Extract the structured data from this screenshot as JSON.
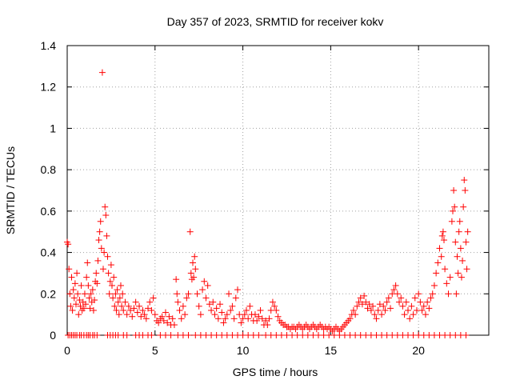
{
  "chart_data": {
    "type": "scatter",
    "title": "Day 357 of 2023, SRMTID for receiver kokv",
    "xlabel": "GPS time / hours",
    "ylabel": "SRMTID / TECUs",
    "xlim": [
      0,
      24
    ],
    "ylim": [
      0,
      1.4
    ],
    "xticks": [
      0,
      5,
      10,
      15,
      20
    ],
    "yticks": [
      0,
      0.2,
      0.4,
      0.6,
      0.8,
      1,
      1.2,
      1.4
    ],
    "xtick_labels": [
      "0",
      "5",
      "10",
      "15",
      "20"
    ],
    "ytick_labels": [
      "0",
      "0.2",
      "0.4",
      "0.6",
      "0.8",
      "1",
      "1.2",
      "1.4"
    ],
    "grid": true,
    "marker": "+",
    "color": "#ff0000",
    "series": [
      {
        "name": "SRMTID",
        "points": [
          [
            0.0,
            0.45
          ],
          [
            0.05,
            0.44
          ],
          [
            0.1,
            0.32
          ],
          [
            0.15,
            0.2
          ],
          [
            0.2,
            0.14
          ],
          [
            0.25,
            0.28
          ],
          [
            0.3,
            0.12
          ],
          [
            0.35,
            0.22
          ],
          [
            0.4,
            0.18
          ],
          [
            0.45,
            0.25
          ],
          [
            0.5,
            0.15
          ],
          [
            0.55,
            0.3
          ],
          [
            0.6,
            0.2
          ],
          [
            0.65,
            0.1
          ],
          [
            0.7,
            0.17
          ],
          [
            0.75,
            0.14
          ],
          [
            0.8,
            0.24
          ],
          [
            0.85,
            0.12
          ],
          [
            0.9,
            0.16
          ],
          [
            0.95,
            0.13
          ],
          [
            1.0,
            0.2
          ],
          [
            1.05,
            0.15
          ],
          [
            1.1,
            0.28
          ],
          [
            1.15,
            0.35
          ],
          [
            1.2,
            0.24
          ],
          [
            1.25,
            0.18
          ],
          [
            1.3,
            0.13
          ],
          [
            1.35,
            0.2
          ],
          [
            1.4,
            0.16
          ],
          [
            1.45,
            0.22
          ],
          [
            1.5,
            0.12
          ],
          [
            1.55,
            0.17
          ],
          [
            1.6,
            0.26
          ],
          [
            1.65,
            0.3
          ],
          [
            1.7,
            0.25
          ],
          [
            1.75,
            0.36
          ],
          [
            1.8,
            0.46
          ],
          [
            1.85,
            0.5
          ],
          [
            1.9,
            0.55
          ],
          [
            1.95,
            0.42
          ],
          [
            2.0,
            1.27
          ],
          [
            2.05,
            0.32
          ],
          [
            2.1,
            0.4
          ],
          [
            2.15,
            0.62
          ],
          [
            2.2,
            0.58
          ],
          [
            2.25,
            0.48
          ],
          [
            2.3,
            0.38
          ],
          [
            2.35,
            0.3
          ],
          [
            2.4,
            0.2
          ],
          [
            2.45,
            0.26
          ],
          [
            2.5,
            0.34
          ],
          [
            2.55,
            0.24
          ],
          [
            2.6,
            0.18
          ],
          [
            2.65,
            0.28
          ],
          [
            2.7,
            0.14
          ],
          [
            2.75,
            0.2
          ],
          [
            2.8,
            0.12
          ],
          [
            2.85,
            0.22
          ],
          [
            2.9,
            0.16
          ],
          [
            2.95,
            0.1
          ],
          [
            3.0,
            0.18
          ],
          [
            3.05,
            0.24
          ],
          [
            3.1,
            0.14
          ],
          [
            3.15,
            0.2
          ],
          [
            3.2,
            0.12
          ],
          [
            3.3,
            0.16
          ],
          [
            3.4,
            0.1
          ],
          [
            3.5,
            0.14
          ],
          [
            3.6,
            0.12
          ],
          [
            3.7,
            0.09
          ],
          [
            3.8,
            0.13
          ],
          [
            3.9,
            0.16
          ],
          [
            4.0,
            0.11
          ],
          [
            4.1,
            0.14
          ],
          [
            4.2,
            0.09
          ],
          [
            4.3,
            0.12
          ],
          [
            4.4,
            0.1
          ],
          [
            4.5,
            0.08
          ],
          [
            4.6,
            0.13
          ],
          [
            4.7,
            0.16
          ],
          [
            4.8,
            0.12
          ],
          [
            4.9,
            0.18
          ],
          [
            5.0,
            0.1
          ],
          [
            5.1,
            0.07
          ],
          [
            5.2,
            0.06
          ],
          [
            5.3,
            0.08
          ],
          [
            5.4,
            0.09
          ],
          [
            5.5,
            0.07
          ],
          [
            5.6,
            0.11
          ],
          [
            5.7,
            0.06
          ],
          [
            5.8,
            0.09
          ],
          [
            5.9,
            0.05
          ],
          [
            6.0,
            0.08
          ],
          [
            6.1,
            0.05
          ],
          [
            6.2,
            0.27
          ],
          [
            6.25,
            0.2
          ],
          [
            6.3,
            0.16
          ],
          [
            6.4,
            0.12
          ],
          [
            6.5,
            0.08
          ],
          [
            6.6,
            0.14
          ],
          [
            6.7,
            0.1
          ],
          [
            6.8,
            0.18
          ],
          [
            6.9,
            0.2
          ],
          [
            7.0,
            0.5
          ],
          [
            7.05,
            0.3
          ],
          [
            7.1,
            0.27
          ],
          [
            7.15,
            0.35
          ],
          [
            7.2,
            0.28
          ],
          [
            7.25,
            0.38
          ],
          [
            7.3,
            0.32
          ],
          [
            7.4,
            0.2
          ],
          [
            7.5,
            0.14
          ],
          [
            7.6,
            0.1
          ],
          [
            7.7,
            0.22
          ],
          [
            7.8,
            0.26
          ],
          [
            7.9,
            0.18
          ],
          [
            8.0,
            0.24
          ],
          [
            8.1,
            0.15
          ],
          [
            8.2,
            0.12
          ],
          [
            8.3,
            0.16
          ],
          [
            8.4,
            0.1
          ],
          [
            8.5,
            0.13
          ],
          [
            8.6,
            0.08
          ],
          [
            8.7,
            0.15
          ],
          [
            8.8,
            0.11
          ],
          [
            8.9,
            0.06
          ],
          [
            9.0,
            0.08
          ],
          [
            9.1,
            0.1
          ],
          [
            9.2,
            0.2
          ],
          [
            9.3,
            0.12
          ],
          [
            9.4,
            0.14
          ],
          [
            9.5,
            0.08
          ],
          [
            9.6,
            0.18
          ],
          [
            9.7,
            0.22
          ],
          [
            9.8,
            0.1
          ],
          [
            9.9,
            0.06
          ],
          [
            10.0,
            0.08
          ],
          [
            10.1,
            0.1
          ],
          [
            10.2,
            0.12
          ],
          [
            10.3,
            0.08
          ],
          [
            10.4,
            0.14
          ],
          [
            10.5,
            0.1
          ],
          [
            10.6,
            0.07
          ],
          [
            10.7,
            0.1
          ],
          [
            10.8,
            0.07
          ],
          [
            10.9,
            0.09
          ],
          [
            11.0,
            0.12
          ],
          [
            11.1,
            0.08
          ],
          [
            11.2,
            0.05
          ],
          [
            11.3,
            0.07
          ],
          [
            11.4,
            0.05
          ],
          [
            11.5,
            0.08
          ],
          [
            11.6,
            0.12
          ],
          [
            11.7,
            0.16
          ],
          [
            11.8,
            0.14
          ],
          [
            11.9,
            0.12
          ],
          [
            12.0,
            0.09
          ],
          [
            12.1,
            0.07
          ],
          [
            12.2,
            0.06
          ],
          [
            12.3,
            0.05
          ],
          [
            12.4,
            0.05
          ],
          [
            12.5,
            0.04
          ],
          [
            12.6,
            0.04
          ],
          [
            12.7,
            0.03
          ],
          [
            12.8,
            0.04
          ],
          [
            12.9,
            0.04
          ],
          [
            13.0,
            0.03
          ],
          [
            13.1,
            0.04
          ],
          [
            13.2,
            0.05
          ],
          [
            13.3,
            0.04
          ],
          [
            13.4,
            0.03
          ],
          [
            13.5,
            0.04
          ],
          [
            13.6,
            0.05
          ],
          [
            13.7,
            0.04
          ],
          [
            13.8,
            0.03
          ],
          [
            13.9,
            0.04
          ],
          [
            14.0,
            0.05
          ],
          [
            14.1,
            0.04
          ],
          [
            14.2,
            0.03
          ],
          [
            14.3,
            0.04
          ],
          [
            14.4,
            0.05
          ],
          [
            14.5,
            0.04
          ],
          [
            14.6,
            0.03
          ],
          [
            14.7,
            0.04
          ],
          [
            14.8,
            0.03
          ],
          [
            14.9,
            0.04
          ],
          [
            15.0,
            0.03
          ],
          [
            15.1,
            0.02
          ],
          [
            15.2,
            0.03
          ],
          [
            15.3,
            0.04
          ],
          [
            15.4,
            0.03
          ],
          [
            15.5,
            0.02
          ],
          [
            15.6,
            0.03
          ],
          [
            15.7,
            0.04
          ],
          [
            15.8,
            0.05
          ],
          [
            15.9,
            0.06
          ],
          [
            16.0,
            0.07
          ],
          [
            16.1,
            0.08
          ],
          [
            16.2,
            0.1
          ],
          [
            16.3,
            0.12
          ],
          [
            16.4,
            0.1
          ],
          [
            16.5,
            0.14
          ],
          [
            16.6,
            0.16
          ],
          [
            16.7,
            0.18
          ],
          [
            16.8,
            0.15
          ],
          [
            16.9,
            0.19
          ],
          [
            17.0,
            0.16
          ],
          [
            17.1,
            0.13
          ],
          [
            17.2,
            0.15
          ],
          [
            17.3,
            0.12
          ],
          [
            17.4,
            0.14
          ],
          [
            17.5,
            0.1
          ],
          [
            17.6,
            0.08
          ],
          [
            17.7,
            0.12
          ],
          [
            17.8,
            0.15
          ],
          [
            17.9,
            0.1
          ],
          [
            18.0,
            0.14
          ],
          [
            18.1,
            0.12
          ],
          [
            18.2,
            0.16
          ],
          [
            18.3,
            0.18
          ],
          [
            18.4,
            0.13
          ],
          [
            18.5,
            0.2
          ],
          [
            18.6,
            0.22
          ],
          [
            18.7,
            0.24
          ],
          [
            18.8,
            0.2
          ],
          [
            18.9,
            0.16
          ],
          [
            19.0,
            0.18
          ],
          [
            19.1,
            0.14
          ],
          [
            19.2,
            0.1
          ],
          [
            19.3,
            0.16
          ],
          [
            19.4,
            0.12
          ],
          [
            19.5,
            0.08
          ],
          [
            19.6,
            0.14
          ],
          [
            19.7,
            0.1
          ],
          [
            19.8,
            0.18
          ],
          [
            19.9,
            0.12
          ],
          [
            20.0,
            0.2
          ],
          [
            20.1,
            0.16
          ],
          [
            20.2,
            0.12
          ],
          [
            20.3,
            0.14
          ],
          [
            20.4,
            0.1
          ],
          [
            20.5,
            0.16
          ],
          [
            20.6,
            0.13
          ],
          [
            20.7,
            0.18
          ],
          [
            20.8,
            0.2
          ],
          [
            20.9,
            0.24
          ],
          [
            21.0,
            0.3
          ],
          [
            21.1,
            0.35
          ],
          [
            21.2,
            0.42
          ],
          [
            21.3,
            0.38
          ],
          [
            21.35,
            0.48
          ],
          [
            21.4,
            0.5
          ],
          [
            21.45,
            0.46
          ],
          [
            21.5,
            0.32
          ],
          [
            21.6,
            0.25
          ],
          [
            21.7,
            0.2
          ],
          [
            21.8,
            0.28
          ],
          [
            21.9,
            0.55
          ],
          [
            21.95,
            0.6
          ],
          [
            22.0,
            0.7
          ],
          [
            22.05,
            0.62
          ],
          [
            22.1,
            0.45
          ],
          [
            22.15,
            0.2
          ],
          [
            22.2,
            0.38
          ],
          [
            22.25,
            0.3
          ],
          [
            22.3,
            0.5
          ],
          [
            22.35,
            0.55
          ],
          [
            22.4,
            0.42
          ],
          [
            22.45,
            0.28
          ],
          [
            22.5,
            0.36
          ],
          [
            22.55,
            0.62
          ],
          [
            22.6,
            0.75
          ],
          [
            22.65,
            0.7
          ],
          [
            22.7,
            0.45
          ],
          [
            22.75,
            0.32
          ],
          [
            22.8,
            0.5
          ]
        ]
      }
    ],
    "zero_markers_x": [
      0.05,
      0.15,
      0.25,
      0.35,
      0.45,
      0.55,
      0.7,
      0.8,
      0.95,
      1.1,
      1.2,
      1.3,
      1.45,
      1.55,
      1.7,
      2.3,
      2.45,
      2.6,
      2.75,
      2.9,
      3.2,
      3.4,
      3.9,
      4.1,
      4.3,
      4.6,
      4.8,
      5.3,
      5.6,
      5.9,
      6.3,
      6.6,
      6.9,
      7.3,
      7.6,
      7.9,
      8.2,
      8.5,
      8.8,
      9.1,
      9.4,
      9.7,
      10.0,
      10.3,
      10.6,
      10.9,
      11.3,
      11.6,
      11.9,
      12.2,
      12.5,
      12.8,
      13.1,
      13.4,
      13.7,
      14.0,
      14.3,
      14.6,
      14.9,
      15.2,
      15.5,
      15.8,
      16.1,
      16.4,
      16.7,
      17.0,
      17.3,
      17.6,
      17.9,
      18.2,
      18.5,
      18.8,
      19.1,
      19.4,
      19.7,
      20.0,
      20.3,
      20.6,
      20.9,
      21.2,
      21.5,
      21.8,
      22.1,
      22.4,
      22.7
    ]
  }
}
